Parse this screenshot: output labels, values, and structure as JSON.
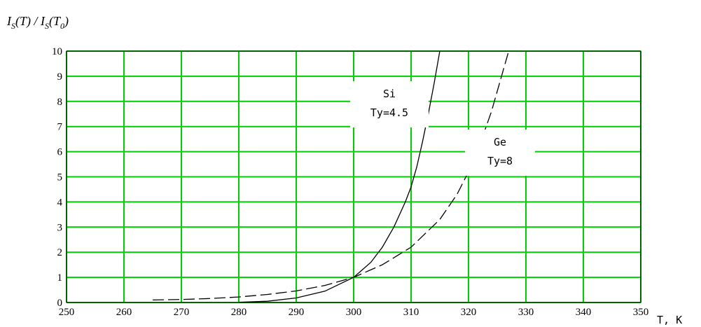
{
  "chart_data": {
    "type": "line",
    "ylabel": "I_S(T)/I_S(T_0)",
    "ylabel_parts": {
      "a": "I",
      "a_sub": "S",
      "b": "(T) / ",
      "c": "I",
      "c_sub": "S",
      "d": "(T",
      "d_sub": "0",
      "e": ")"
    },
    "xlabel": "T, K",
    "xlim": [
      250,
      350
    ],
    "ylim": [
      0,
      10
    ],
    "x_ticks": [
      "250",
      "260",
      "270",
      "280",
      "290",
      "300",
      "310",
      "320",
      "330",
      "340",
      "350"
    ],
    "y_ticks": [
      "0",
      "1",
      "2",
      "3",
      "4",
      "5",
      "6",
      "7",
      "8",
      "9",
      "10"
    ],
    "grid": true,
    "grid_color": "#00cc00",
    "series": [
      {
        "name": "Si",
        "param": "Ty=4.5",
        "style": "solid",
        "x": [
          280,
          285,
          290,
          295,
          300,
          303,
          305,
          307,
          309,
          310,
          311,
          312,
          313,
          314,
          315
        ],
        "y": [
          0.01,
          0.05,
          0.18,
          0.45,
          1.0,
          1.6,
          2.2,
          3.0,
          4.0,
          4.6,
          5.4,
          6.4,
          7.5,
          8.7,
          10.0
        ]
      },
      {
        "name": "Ge",
        "param": "Ty=8",
        "style": "dashed",
        "x": [
          265,
          270,
          275,
          280,
          285,
          290,
          295,
          300,
          305,
          310,
          315,
          318,
          320,
          322,
          324,
          326,
          327
        ],
        "y": [
          0.1,
          0.12,
          0.16,
          0.22,
          0.32,
          0.46,
          0.68,
          1.0,
          1.5,
          2.2,
          3.3,
          4.3,
          5.2,
          6.3,
          7.6,
          9.2,
          10.0
        ]
      }
    ],
    "annotations": [
      {
        "series": "Si",
        "line1": "Si",
        "line2": "Ty=4.5"
      },
      {
        "series": "Ge",
        "line1": "Ge",
        "line2": "Ty=8"
      }
    ]
  }
}
